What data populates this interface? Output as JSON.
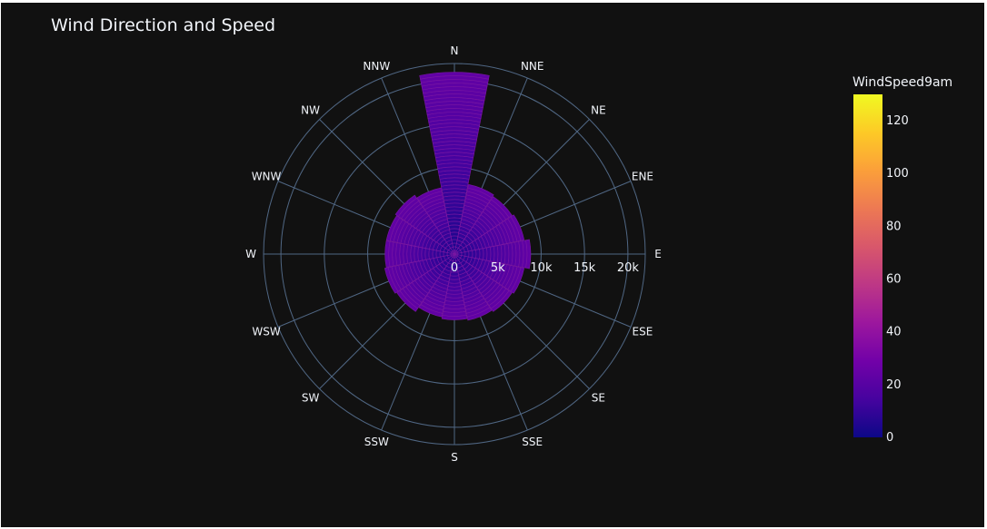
{
  "title": "Wind Direction and Speed",
  "chart_data": {
    "type": "barpolar",
    "title": "Wind Direction and Speed",
    "directions": [
      "N",
      "NNE",
      "NE",
      "ENE",
      "E",
      "ESE",
      "SE",
      "SSE",
      "S",
      "SSW",
      "SW",
      "WSW",
      "W",
      "WNW",
      "NW",
      "NNW"
    ],
    "totals": [
      21000,
      8200,
      8000,
      8200,
      8800,
      8200,
      8000,
      7800,
      7600,
      7400,
      8000,
      8200,
      8000,
      8000,
      8200,
      7800
    ],
    "radial_tick_labels": [
      "0",
      "5k",
      "10k",
      "15k",
      "20k"
    ],
    "radial_ticks": [
      0,
      5000,
      10000,
      15000,
      20000
    ],
    "radial_range": [
      0,
      22000
    ],
    "color_by": "WindSpeed9am",
    "colorscale": [
      "#0d0887",
      "#46039f",
      "#7201a8",
      "#9c179e",
      "#bd3786",
      "#d8576b",
      "#ed7953",
      "#fb9f3a",
      "#fdca26",
      "#f0f921"
    ],
    "colorbar": {
      "title": "WindSpeed9am",
      "tick_labels": [
        "0",
        "20",
        "40",
        "60",
        "80",
        "100",
        "120"
      ],
      "ticks": [
        0,
        20,
        40,
        60,
        80,
        100,
        120
      ],
      "range": [
        0,
        130
      ]
    },
    "grid": true,
    "colors": {
      "background": "#111111",
      "grid": "#506784",
      "text": "#f2f5fa",
      "bar_edge": "#7a17a3"
    }
  }
}
